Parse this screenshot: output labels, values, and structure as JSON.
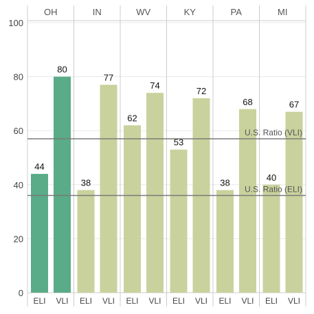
{
  "chart_data": {
    "type": "bar",
    "panels": [
      "OH",
      "IN",
      "WV",
      "KY",
      "PA",
      "MI"
    ],
    "categories": [
      "ELI",
      "VLI"
    ],
    "values": {
      "OH": [
        44,
        80
      ],
      "IN": [
        38,
        77
      ],
      "WV": [
        62,
        74
      ],
      "KY": [
        53,
        72
      ],
      "PA": [
        38,
        68
      ],
      "MI": [
        40,
        67
      ]
    },
    "highlight_panel": "OH",
    "ylim": [
      0,
      100
    ],
    "yticks": [
      0,
      20,
      40,
      60,
      80,
      100
    ],
    "reference_lines": [
      {
        "label": "U.S. Ratio (VLI)",
        "value": 57
      },
      {
        "label": "U.S. Ratio (ELI)",
        "value": 36
      }
    ],
    "grid": true,
    "colors": {
      "highlight": "#5aab87",
      "default": "#c9d29d",
      "reference": "#7a7a7a",
      "grid": "#e8e8e8",
      "divider": "#cccccc"
    }
  }
}
